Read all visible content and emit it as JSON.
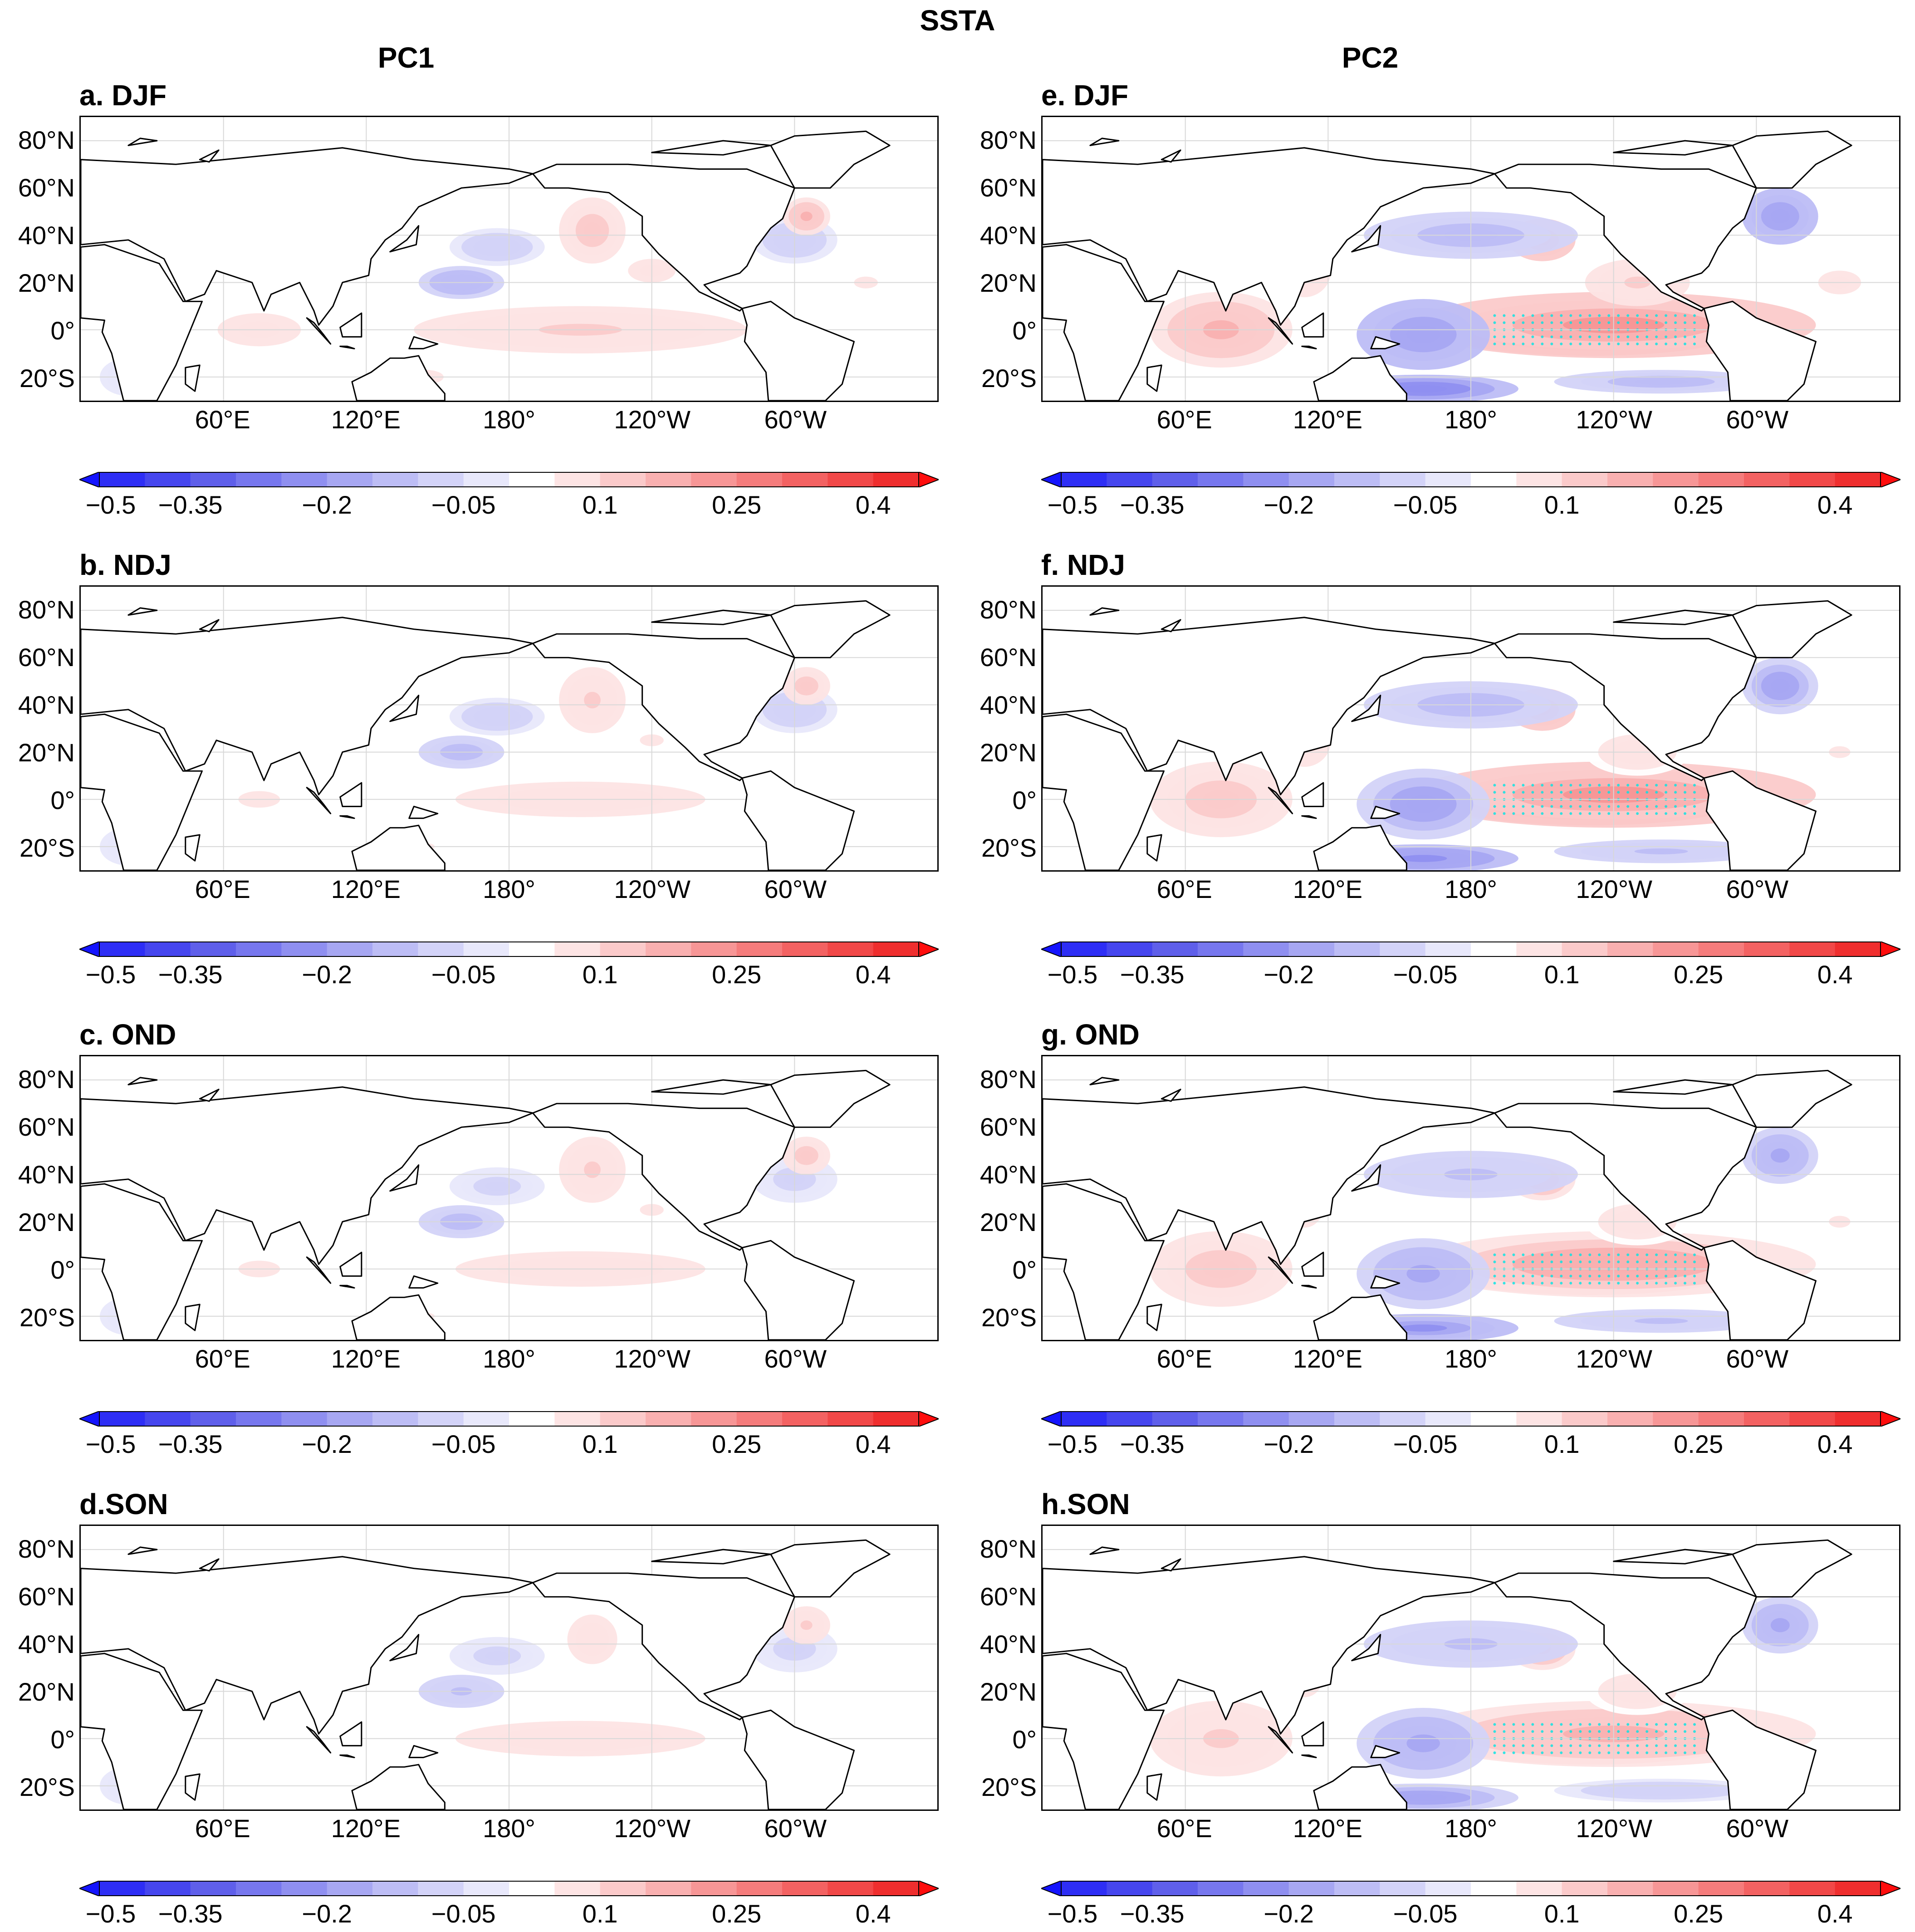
{
  "figure": {
    "title": "SSTA"
  },
  "columns": [
    {
      "label": "PC1"
    },
    {
      "label": "PC2"
    }
  ],
  "panels": [
    {
      "id": "a",
      "label": "a. DJF",
      "column": "PC1",
      "season": "DJF"
    },
    {
      "id": "b",
      "label": "b. NDJ",
      "column": "PC1",
      "season": "NDJ"
    },
    {
      "id": "c",
      "label": "c. OND",
      "column": "PC1",
      "season": "OND"
    },
    {
      "id": "d",
      "label": "d.SON",
      "column": "PC1",
      "season": "SON"
    },
    {
      "id": "e",
      "label": "e. DJF",
      "column": "PC2",
      "season": "DJF"
    },
    {
      "id": "f",
      "label": "f. NDJ",
      "column": "PC2",
      "season": "NDJ"
    },
    {
      "id": "g",
      "label": "g. OND",
      "column": "PC2",
      "season": "OND"
    },
    {
      "id": "h",
      "label": "h.SON",
      "column": "PC2",
      "season": "SON"
    }
  ],
  "axes": {
    "lat_ticks": [
      "80°N",
      "60°N",
      "40°N",
      "20°N",
      "0°",
      "20°S"
    ],
    "lon_ticks": [
      "60°E",
      "120°E",
      "180°",
      "120°W",
      "60°W"
    ]
  },
  "colorbar": {
    "ticks": [
      "−0.5",
      "−0.35",
      "−0.2",
      "−0.05",
      "0.1",
      "0.25",
      "0.4"
    ],
    "levels": [
      -0.5,
      -0.45,
      -0.4,
      -0.35,
      -0.3,
      -0.25,
      -0.2,
      -0.15,
      -0.1,
      -0.05,
      0,
      0.05,
      0.1,
      0.15,
      0.2,
      0.25,
      0.3,
      0.35,
      0.4,
      0.45,
      0.5
    ],
    "colors": [
      "#1414ff",
      "#2e2ef5",
      "#4646ee",
      "#5f5fea",
      "#7777ee",
      "#8f8ff0",
      "#a7a7f2",
      "#bdbdf5",
      "#d3d3f8",
      "#e8e8fb",
      "#ffffff",
      "#fde4e4",
      "#fbcaca",
      "#f9b0b0",
      "#f79696",
      "#f57c7c",
      "#f36262",
      "#f14848",
      "#ef2e2e",
      "#ff0d0d"
    ],
    "accent_neg": "#1414ff",
    "accent_pos": "#ff0d0d",
    "stipple_color": "#00e5e5"
  }
}
